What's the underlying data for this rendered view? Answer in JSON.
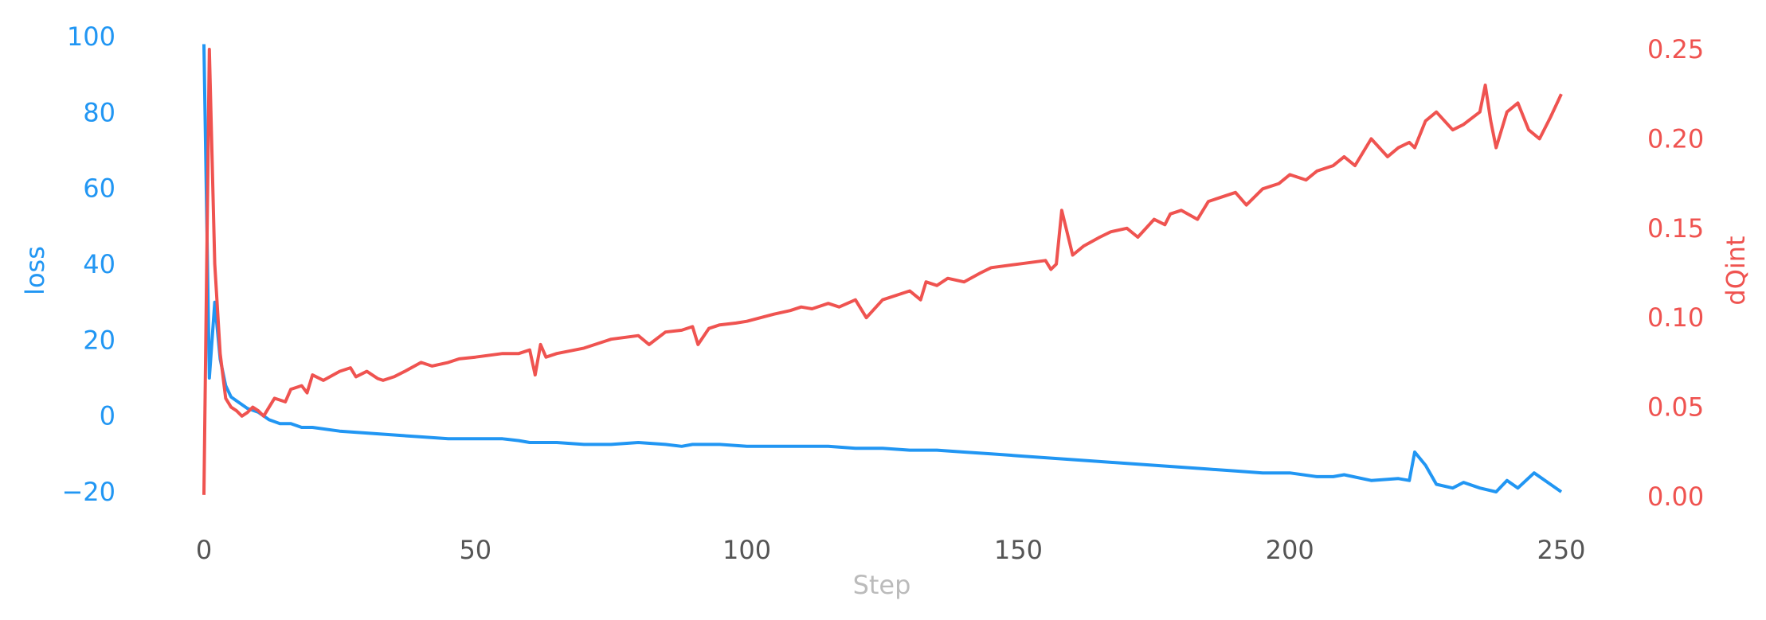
{
  "chart_data": {
    "type": "line",
    "xlabel": "Step",
    "ylabel_left": "loss",
    "ylabel_right": "dQint",
    "xlim": [
      0,
      250
    ],
    "ylim_left": [
      -20,
      100
    ],
    "ylim_right": [
      0,
      0.25
    ],
    "x_ticks": [
      0,
      50,
      100,
      150,
      200,
      250
    ],
    "y_ticks_left": [
      -20,
      0,
      20,
      40,
      60,
      80,
      100
    ],
    "y_ticks_right": [
      0.0,
      0.05,
      0.1,
      0.15,
      0.2,
      0.25
    ],
    "y_tick_labels_left": [
      "−20",
      "0",
      "20",
      "40",
      "60",
      "80",
      "100"
    ],
    "y_tick_labels_right": [
      "0.00",
      "0.05",
      "0.10",
      "0.15",
      "0.20",
      "0.25"
    ],
    "x_tick_labels": [
      "0",
      "50",
      "100",
      "150",
      "200",
      "250"
    ],
    "grid": false,
    "colors": {
      "loss": "#2196f3",
      "dqint": "#ef5350",
      "xlabel": "#bbbbbb",
      "xticks": "#555555"
    },
    "series": [
      {
        "axis": "left",
        "x": [
          0,
          1,
          2,
          3,
          4,
          5,
          6,
          8,
          10,
          12,
          14,
          16,
          18,
          20,
          25,
          30,
          35,
          40,
          45,
          50,
          55,
          58,
          60,
          65,
          70,
          75,
          80,
          85,
          88,
          90,
          95,
          100,
          105,
          110,
          115,
          120,
          125,
          130,
          135,
          140,
          145,
          150,
          155,
          160,
          165,
          170,
          175,
          180,
          185,
          190,
          195,
          200,
          205,
          208,
          210,
          215,
          220,
          222,
          223,
          225,
          227,
          230,
          232,
          235,
          238,
          240,
          242,
          245,
          248,
          250
        ],
        "y": [
          98,
          10,
          30,
          15,
          8,
          5,
          4,
          2,
          1,
          -1,
          -2,
          -2,
          -3,
          -3,
          -4,
          -4.5,
          -5,
          -5.5,
          -6,
          -6,
          -6,
          -6.5,
          -7,
          -7,
          -7.5,
          -7.5,
          -7,
          -7.5,
          -8,
          -7.5,
          -7.5,
          -8,
          -8,
          -8,
          -8,
          -8.5,
          -8.5,
          -9,
          -9,
          -9.5,
          -10,
          -10.5,
          -11,
          -11.5,
          -12,
          -12.5,
          -13,
          -13.5,
          -14,
          -14.5,
          -15,
          -15,
          -16,
          -16,
          -15.5,
          -17,
          -16.5,
          -17,
          -9.5,
          -13,
          -18,
          -19,
          -17.5,
          -19,
          -20,
          -17,
          -19,
          -15,
          -18,
          -20
        ]
      },
      {
        "axis": "right",
        "x": [
          0,
          1,
          2,
          3,
          4,
          5,
          6,
          7,
          8,
          9,
          10,
          11,
          12,
          13,
          14,
          15,
          16,
          18,
          19,
          20,
          22,
          25,
          27,
          28,
          30,
          32,
          33,
          35,
          37,
          40,
          42,
          45,
          47,
          50,
          55,
          58,
          60,
          61,
          62,
          63,
          65,
          70,
          72,
          75,
          80,
          82,
          85,
          88,
          90,
          91,
          93,
          95,
          98,
          100,
          105,
          108,
          110,
          112,
          115,
          117,
          120,
          122,
          125,
          128,
          130,
          132,
          133,
          135,
          137,
          140,
          143,
          145,
          150,
          155,
          156,
          157,
          158,
          160,
          162,
          165,
          167,
          170,
          172,
          175,
          177,
          178,
          180,
          183,
          185,
          188,
          190,
          192,
          195,
          198,
          200,
          203,
          205,
          208,
          210,
          212,
          215,
          218,
          220,
          222,
          223,
          225,
          227,
          230,
          232,
          235,
          236,
          237,
          238,
          240,
          242,
          244,
          246,
          248,
          250
        ],
        "y": [
          0.001,
          0.25,
          0.13,
          0.08,
          0.055,
          0.05,
          0.048,
          0.045,
          0.047,
          0.05,
          0.048,
          0.045,
          0.05,
          0.055,
          0.054,
          0.053,
          0.06,
          0.062,
          0.058,
          0.068,
          0.065,
          0.07,
          0.072,
          0.067,
          0.07,
          0.066,
          0.065,
          0.067,
          0.07,
          0.075,
          0.073,
          0.075,
          0.077,
          0.078,
          0.08,
          0.08,
          0.082,
          0.068,
          0.085,
          0.078,
          0.08,
          0.083,
          0.085,
          0.088,
          0.09,
          0.085,
          0.092,
          0.093,
          0.095,
          0.085,
          0.094,
          0.096,
          0.097,
          0.098,
          0.102,
          0.104,
          0.106,
          0.105,
          0.108,
          0.106,
          0.11,
          0.1,
          0.11,
          0.113,
          0.115,
          0.11,
          0.12,
          0.118,
          0.122,
          0.12,
          0.125,
          0.128,
          0.13,
          0.132,
          0.127,
          0.13,
          0.16,
          0.135,
          0.14,
          0.145,
          0.148,
          0.15,
          0.145,
          0.155,
          0.152,
          0.158,
          0.16,
          0.155,
          0.165,
          0.168,
          0.17,
          0.163,
          0.172,
          0.175,
          0.18,
          0.177,
          0.182,
          0.185,
          0.19,
          0.185,
          0.2,
          0.19,
          0.195,
          0.198,
          0.195,
          0.21,
          0.215,
          0.205,
          0.208,
          0.215,
          0.23,
          0.21,
          0.195,
          0.215,
          0.22,
          0.205,
          0.2,
          0.212,
          0.225
        ]
      }
    ]
  }
}
